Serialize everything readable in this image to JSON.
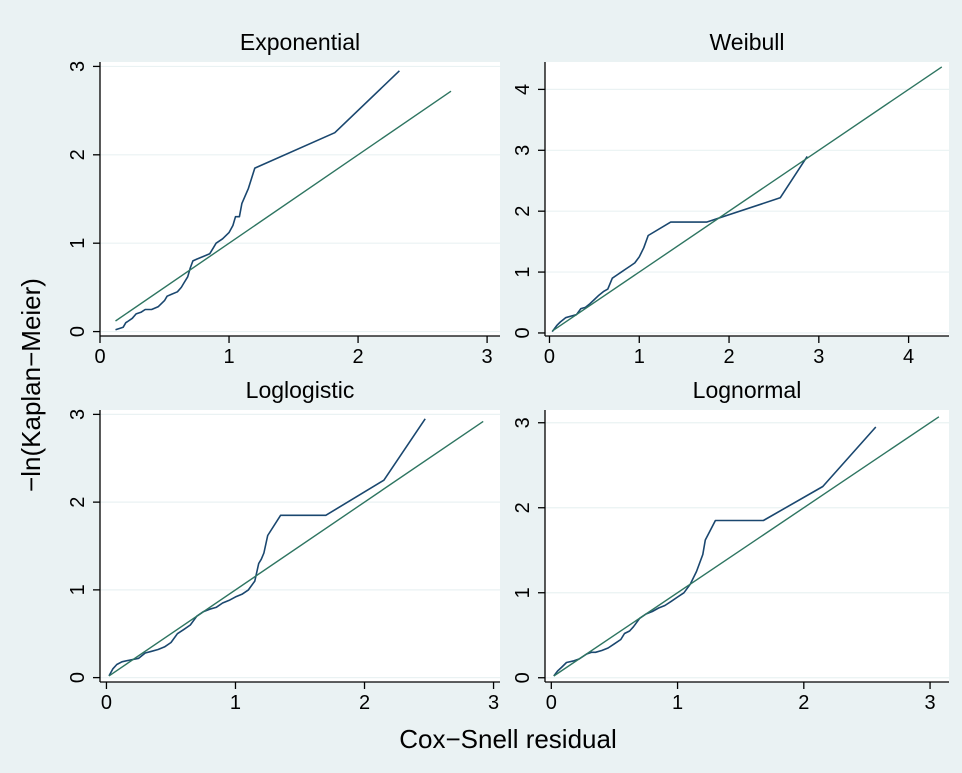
{
  "figure": {
    "xlabel": "Cox−Snell residual",
    "ylabel": "−ln(Kaplan−Meier)",
    "colors": {
      "outer_background": "#eaf2f3",
      "plot_background": "#ffffff",
      "km_line": "#1a476f",
      "reference_line": "#2e7561",
      "grid": "#eaf2f3",
      "axis": "#000000"
    }
  },
  "chart_data": [
    {
      "type": "line",
      "title": "Exponential",
      "xlim": [
        0,
        3.1
      ],
      "ylim": [
        -0.05,
        3.05
      ],
      "xticks": [
        "0",
        "1",
        "2",
        "3"
      ],
      "yticks": [
        "0",
        "1",
        "2",
        "3"
      ],
      "grid": true,
      "series": [
        {
          "role": "km",
          "x": [
            0.12,
            0.18,
            0.2,
            0.22,
            0.25,
            0.28,
            0.32,
            0.35,
            0.4,
            0.45,
            0.5,
            0.52,
            0.55,
            0.6,
            0.63,
            0.65,
            0.68,
            0.7,
            0.72,
            0.75,
            0.8,
            0.85,
            0.88,
            0.9,
            0.95,
            1.0,
            1.03,
            1.05,
            1.08,
            1.1,
            1.15,
            1.2,
            1.82,
            2.32
          ],
          "y": [
            0.02,
            0.05,
            0.1,
            0.12,
            0.15,
            0.2,
            0.22,
            0.25,
            0.25,
            0.28,
            0.35,
            0.4,
            0.42,
            0.45,
            0.5,
            0.55,
            0.62,
            0.72,
            0.8,
            0.82,
            0.85,
            0.88,
            0.95,
            1.0,
            1.05,
            1.12,
            1.2,
            1.3,
            1.3,
            1.45,
            1.62,
            1.85,
            2.25,
            2.95
          ]
        },
        {
          "role": "reference",
          "x": [
            0.12,
            2.72
          ],
          "y": [
            0.12,
            2.72
          ]
        }
      ]
    },
    {
      "type": "line",
      "title": "Weibull",
      "xlim": [
        -0.05,
        4.45
      ],
      "ylim": [
        -0.05,
        4.45
      ],
      "xticks": [
        "0",
        "1",
        "2",
        "3",
        "4"
      ],
      "yticks": [
        "0",
        "1",
        "2",
        "3",
        "4"
      ],
      "grid": true,
      "series": [
        {
          "role": "km",
          "x": [
            0.03,
            0.08,
            0.12,
            0.18,
            0.25,
            0.3,
            0.35,
            0.4,
            0.45,
            0.5,
            0.55,
            0.6,
            0.65,
            0.7,
            0.75,
            0.8,
            0.85,
            0.9,
            0.95,
            1.0,
            1.05,
            1.1,
            1.35,
            1.75,
            2.57,
            2.87
          ],
          "y": [
            0.02,
            0.12,
            0.18,
            0.25,
            0.28,
            0.3,
            0.4,
            0.42,
            0.48,
            0.55,
            0.62,
            0.68,
            0.72,
            0.9,
            0.95,
            1.0,
            1.05,
            1.1,
            1.15,
            1.25,
            1.4,
            1.6,
            1.82,
            1.82,
            2.22,
            2.9
          ]
        },
        {
          "role": "reference",
          "x": [
            0.03,
            4.37
          ],
          "y": [
            0.03,
            4.37
          ]
        }
      ]
    },
    {
      "type": "line",
      "title": "Loglogistic",
      "xlim": [
        -0.05,
        3.05
      ],
      "ylim": [
        -0.05,
        3.05
      ],
      "xticks": [
        "0",
        "1",
        "2",
        "3"
      ],
      "yticks": [
        "0",
        "1",
        "2",
        "3"
      ],
      "grid": true,
      "series": [
        {
          "role": "km",
          "x": [
            0.02,
            0.05,
            0.08,
            0.12,
            0.18,
            0.25,
            0.3,
            0.35,
            0.4,
            0.45,
            0.5,
            0.55,
            0.6,
            0.65,
            0.7,
            0.75,
            0.8,
            0.85,
            0.9,
            0.95,
            1.0,
            1.05,
            1.1,
            1.15,
            1.18,
            1.2,
            1.22,
            1.25,
            1.35,
            1.7,
            2.15,
            2.47
          ],
          "y": [
            0.02,
            0.1,
            0.15,
            0.18,
            0.2,
            0.22,
            0.28,
            0.3,
            0.32,
            0.35,
            0.4,
            0.5,
            0.55,
            0.6,
            0.7,
            0.75,
            0.78,
            0.8,
            0.85,
            0.88,
            0.92,
            0.95,
            1.0,
            1.1,
            1.3,
            1.35,
            1.42,
            1.62,
            1.85,
            1.85,
            2.25,
            2.95
          ]
        },
        {
          "role": "reference",
          "x": [
            0.02,
            2.92
          ],
          "y": [
            0.02,
            2.92
          ]
        }
      ]
    },
    {
      "type": "line",
      "title": "Lognormal",
      "xlim": [
        -0.05,
        3.15
      ],
      "ylim": [
        -0.05,
        3.15
      ],
      "xticks": [
        "0",
        "1",
        "2",
        "3"
      ],
      "yticks": [
        "0",
        "1",
        "2",
        "3"
      ],
      "grid": true,
      "series": [
        {
          "role": "km",
          "x": [
            0.02,
            0.05,
            0.08,
            0.12,
            0.18,
            0.22,
            0.28,
            0.32,
            0.35,
            0.4,
            0.45,
            0.5,
            0.55,
            0.58,
            0.62,
            0.65,
            0.7,
            0.75,
            0.8,
            0.85,
            0.9,
            0.95,
            1.0,
            1.05,
            1.1,
            1.15,
            1.2,
            1.22,
            1.3,
            1.68,
            2.15,
            2.57
          ],
          "y": [
            0.02,
            0.08,
            0.12,
            0.18,
            0.2,
            0.22,
            0.28,
            0.3,
            0.3,
            0.32,
            0.35,
            0.4,
            0.45,
            0.52,
            0.55,
            0.6,
            0.7,
            0.75,
            0.78,
            0.82,
            0.85,
            0.9,
            0.95,
            1.0,
            1.1,
            1.25,
            1.45,
            1.62,
            1.85,
            1.85,
            2.25,
            2.95
          ]
        },
        {
          "role": "reference",
          "x": [
            0.02,
            3.07
          ],
          "y": [
            0.02,
            3.07
          ]
        }
      ]
    }
  ]
}
